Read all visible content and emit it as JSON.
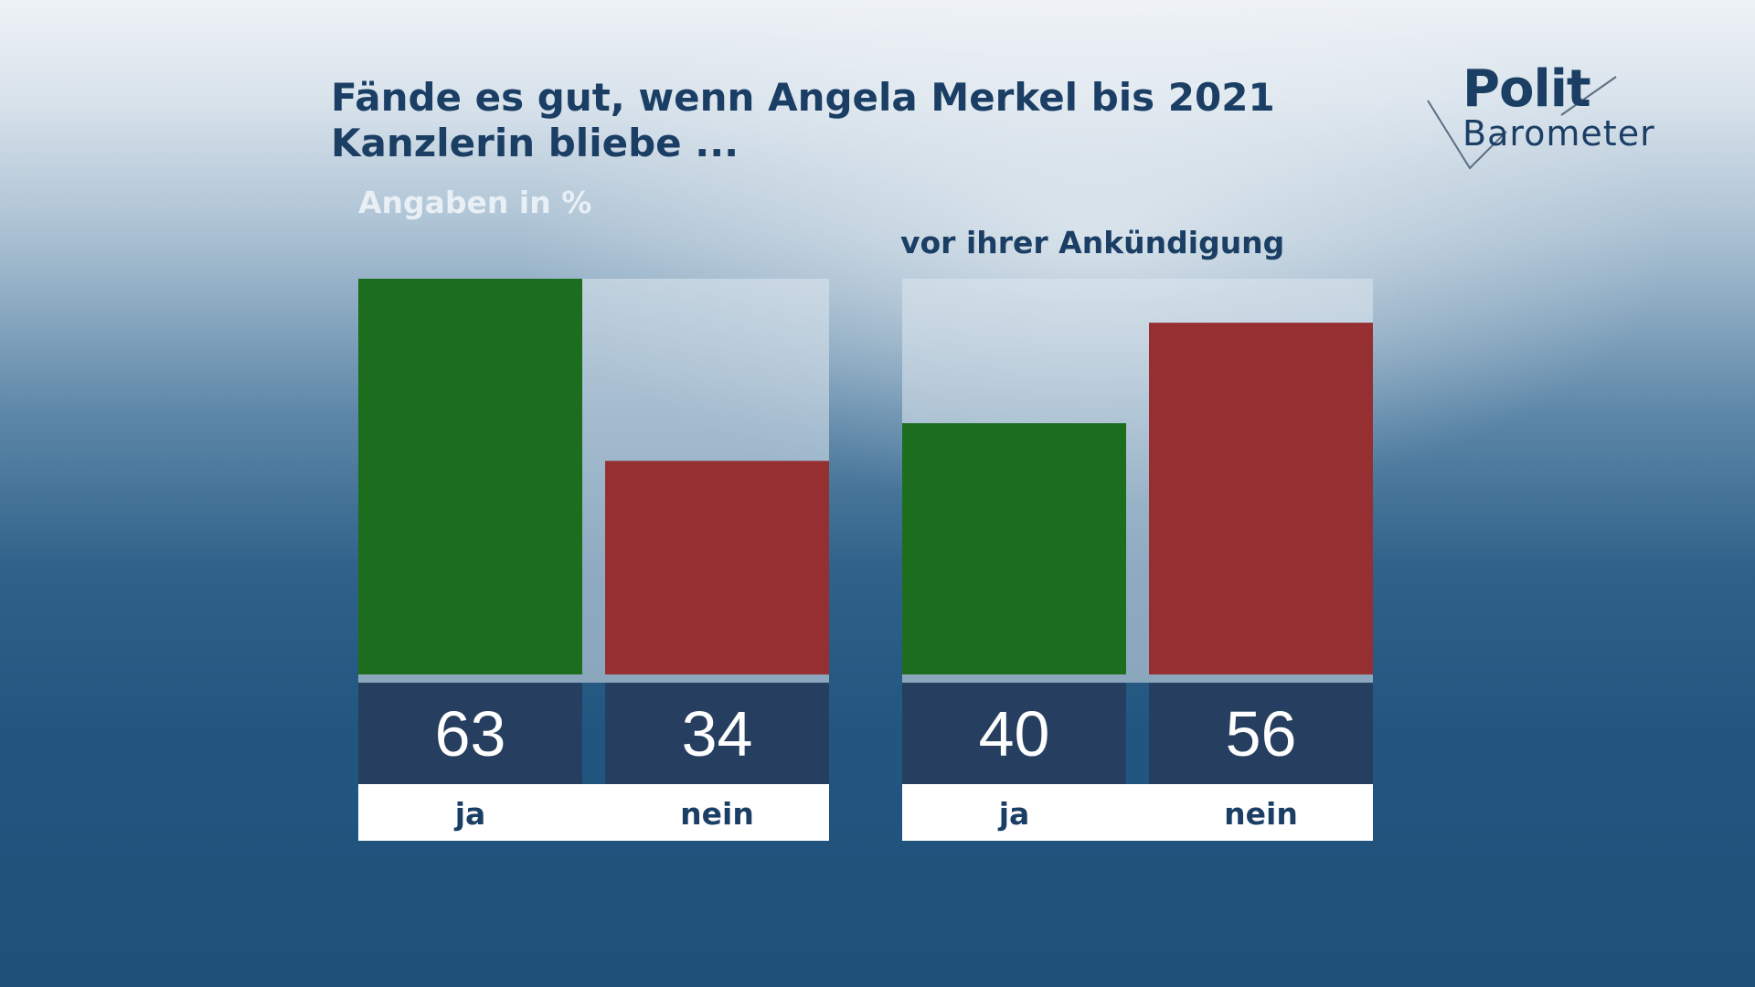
{
  "header": {
    "title_line1": "Fände es gut, wenn Angela Merkel bis 2021",
    "title_line2": "Kanzlerin bliebe ...",
    "subtitle": "Angaben in %"
  },
  "logo": {
    "line1": "Polit",
    "line2": "Barometer"
  },
  "colors": {
    "ja": "#1c6e1e",
    "nein": "#952f31",
    "value_box": "#263f60",
    "panel_bg": "#dfe8ef"
  },
  "chart_data": [
    {
      "type": "bar",
      "title": "",
      "categories": [
        "ja",
        "nein"
      ],
      "values": [
        63,
        34
      ],
      "ylim": [
        0,
        63
      ]
    },
    {
      "type": "bar",
      "title": "vor ihrer Ankündigung",
      "categories": [
        "ja",
        "nein"
      ],
      "values": [
        40,
        56
      ],
      "ylim": [
        0,
        63
      ]
    }
  ]
}
